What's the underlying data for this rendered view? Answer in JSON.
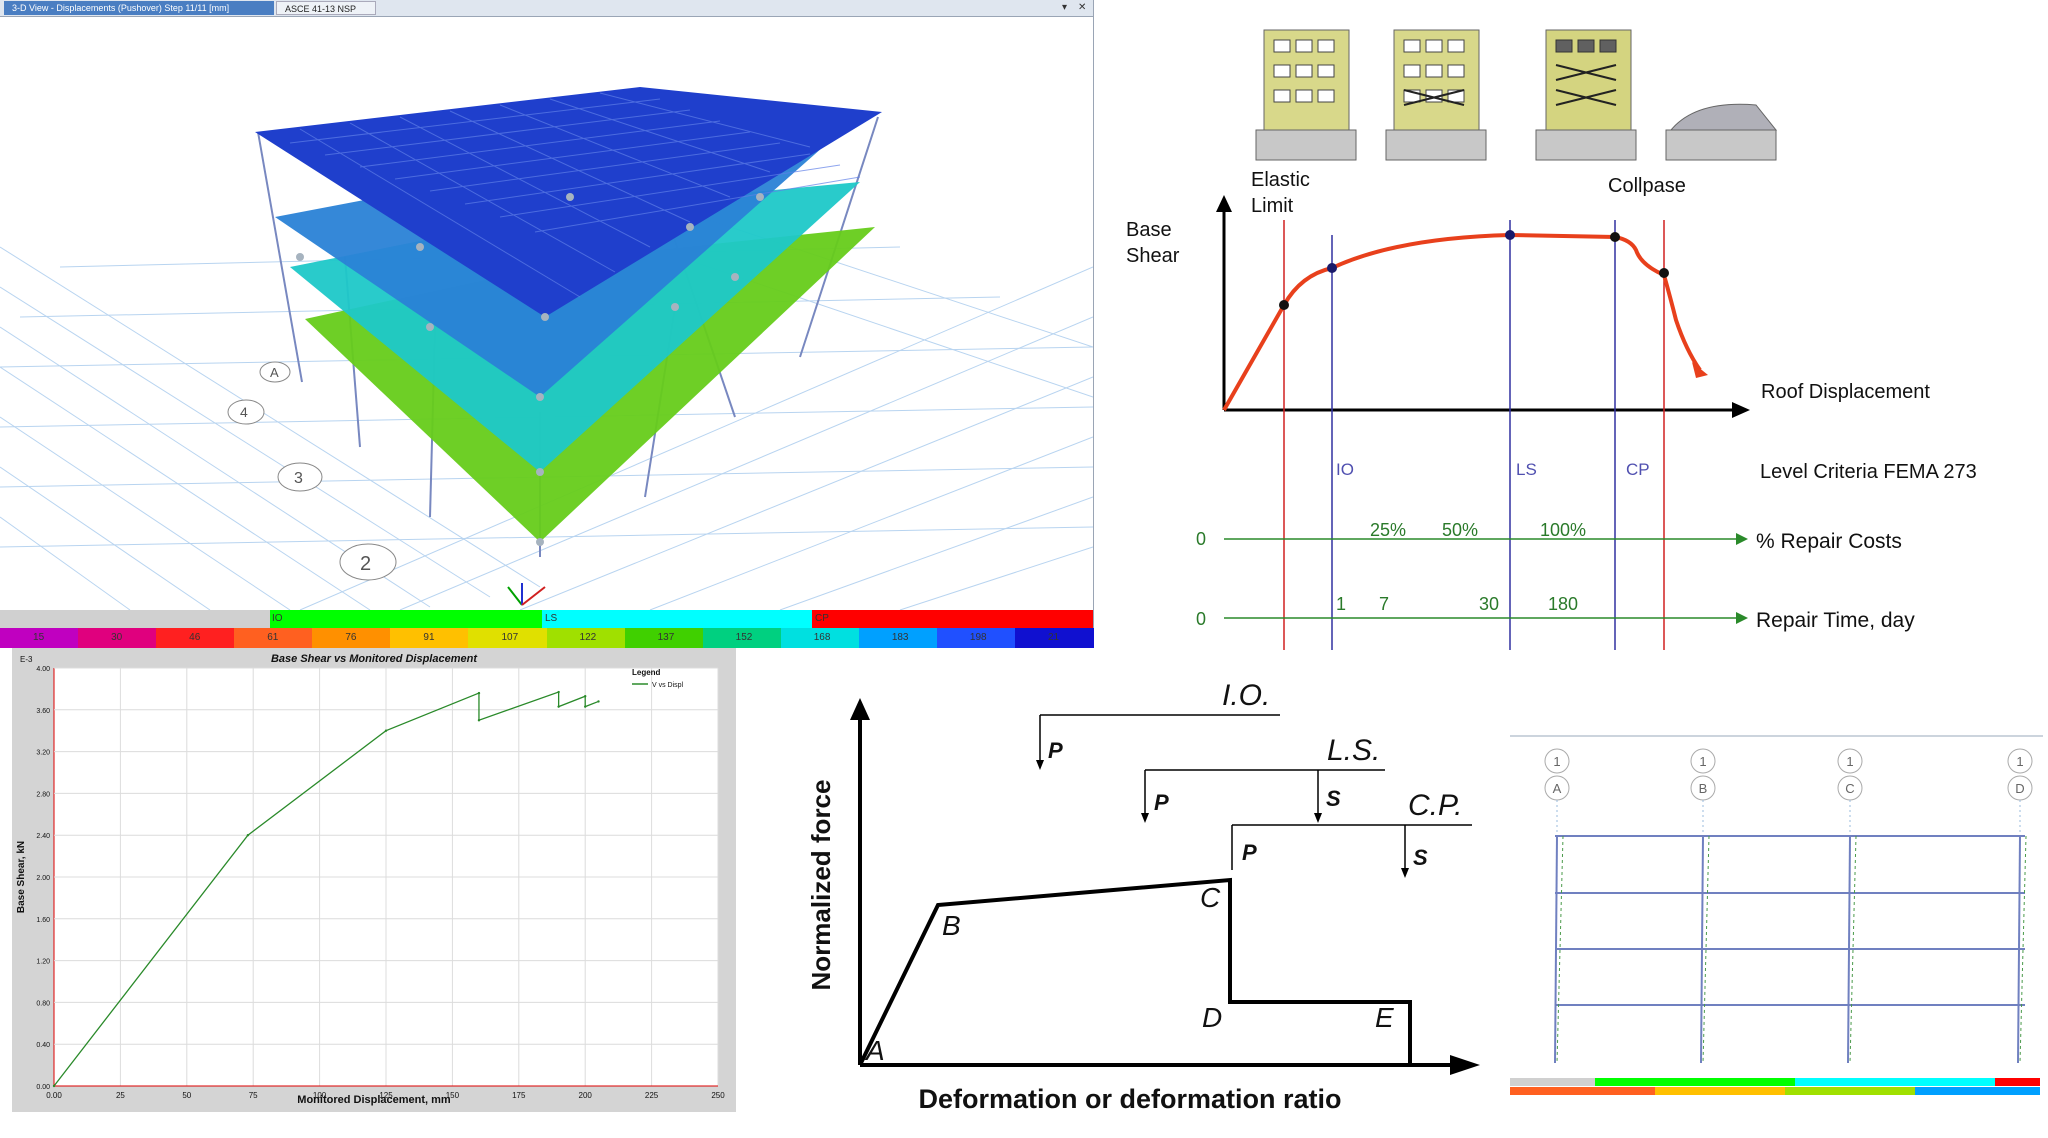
{
  "etabs": {
    "tabs": [
      "3-D View  - Displacements (Pushover)  Step 11/11  [mm]",
      "ASCE 41-13 NSP"
    ],
    "window_buttons": [
      "▾",
      "✕"
    ],
    "grid_labels": [
      "A",
      "4",
      "3",
      "2"
    ],
    "status_bar": {
      "ranges": [
        "IO",
        "LS",
        "CP"
      ],
      "colors": [
        "#d0d0d0",
        "#00ff00",
        "#00ffff",
        "#ff0000"
      ]
    },
    "scale_values": [
      "15",
      "30",
      "46",
      "61",
      "76",
      "91",
      "107",
      "122",
      "137",
      "152",
      "168",
      "183",
      "198",
      "21"
    ],
    "scale_colors": [
      "#c000c0",
      "#e0007e",
      "#ff2020",
      "#ff6020",
      "#ff9000",
      "#ffc000",
      "#e0e000",
      "#a0e000",
      "#40d000",
      "#00d080",
      "#00e0e0",
      "#00a0ff",
      "#2050ff",
      "#1010d0"
    ],
    "slab_colors": [
      "#1f3fcc",
      "#2a82d6",
      "#1ec8c8",
      "#66cc1a"
    ]
  },
  "pushover_chart": {
    "title": "Base Shear vs Monitored Displacement",
    "y_exponent": "E-3",
    "ylabel": "Base Shear, kN",
    "xlabel": "Monitored Displacement, mm",
    "legend_title": "Legend",
    "legend_entry": "V vs Displ",
    "x_ticks": [
      "0.00",
      "25",
      "50",
      "75",
      "100",
      "125",
      "150",
      "175",
      "200",
      "225",
      "250"
    ],
    "y_ticks": [
      "0.00",
      "0.40",
      "0.80",
      "1.20",
      "1.60",
      "2.00",
      "2.40",
      "2.80",
      "3.20",
      "3.60",
      "4.00"
    ]
  },
  "chart_data": {
    "type": "line",
    "title": "Base Shear vs Monitored Displacement",
    "xlabel": "Monitored Displacement, mm",
    "ylabel": "Base Shear, kN",
    "xlim": [
      0,
      250
    ],
    "ylim": [
      0,
      4.0
    ],
    "series": [
      {
        "name": "V vs Displ",
        "x": [
          0,
          73,
          125,
          160,
          160,
          190,
          190,
          200,
          200,
          205
        ],
        "y": [
          0,
          2.4,
          3.4,
          3.76,
          3.5,
          3.77,
          3.63,
          3.73,
          3.63,
          3.68
        ]
      }
    ]
  },
  "fema": {
    "elastic_limit": [
      "Elastic",
      "Limit"
    ],
    "collapse": "Collpase",
    "base_shear": [
      "Base",
      "Shear"
    ],
    "roof_displacement": "Roof Displacement",
    "levels": [
      "IO",
      "LS",
      "CP"
    ],
    "level_criteria": "Level Criteria FEMA 273",
    "repair_costs": {
      "zero": "0",
      "values": [
        "25%",
        "50%",
        "100%"
      ],
      "label": "% Repair Costs"
    },
    "repair_time": {
      "zero": "0",
      "values": [
        "1",
        "7",
        "30",
        "180"
      ],
      "label": "Repair Time, day"
    }
  },
  "hinge": {
    "levels": [
      "I.O.",
      "L.S.",
      "C.P."
    ],
    "p": "P",
    "s": "S",
    "points": [
      "A",
      "B",
      "C",
      "D",
      "E"
    ],
    "ylabel": "Normalized force",
    "xlabel": "Deformation or deformation ratio"
  },
  "frame": {
    "top_bubbles": [
      "1",
      "1",
      "1",
      "1"
    ],
    "column_bubbles": [
      "A",
      "B",
      "C",
      "D"
    ]
  }
}
